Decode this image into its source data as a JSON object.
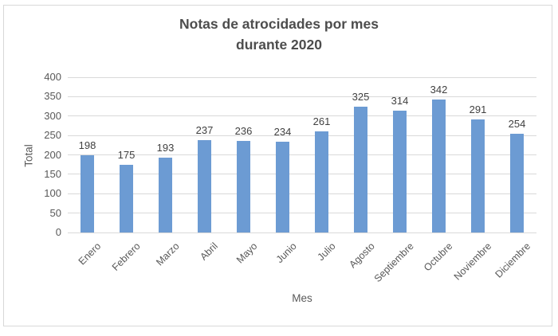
{
  "chart_data": {
    "type": "bar",
    "title": "Notas de atrocidades por mes",
    "title_line2": "durante 2020",
    "categories": [
      "Enero",
      "Febrero",
      "Marzo",
      "Abril",
      "Mayo",
      "Junio",
      "Julio",
      "Agosto",
      "Septiembre",
      "Octubre",
      "Noviembre",
      "Diciembre"
    ],
    "values": [
      198,
      175,
      193,
      237,
      236,
      234,
      261,
      325,
      314,
      342,
      291,
      254
    ],
    "xlabel": "Mes",
    "ylabel": "Total",
    "ylim": [
      0,
      400
    ],
    "ytick_step": 50,
    "grid": true,
    "legend": false,
    "bar_color": "#6c9bd3",
    "gridline_color": "#d9d9d9",
    "axis_text_color": "#595959",
    "value_label_color": "#404040",
    "title_color": "#4d4d4d",
    "background_color": "#ffffff",
    "border_color": "#d8d8d8"
  }
}
